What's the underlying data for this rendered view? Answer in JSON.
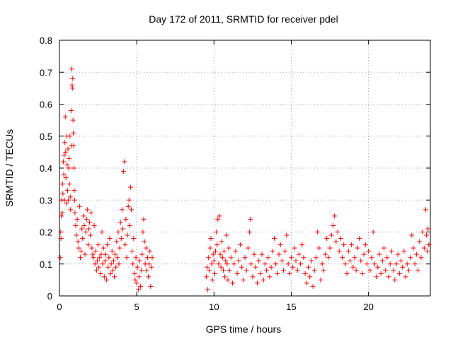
{
  "chart_data": {
    "type": "scatter",
    "title": "Day 172 of 2011, SRMTID for receiver pdel",
    "xlabel": "GPS time / hours",
    "ylabel": "SRMTID / TECUs",
    "xlim": [
      0,
      24
    ],
    "ylim": [
      0,
      0.8
    ],
    "xticks": [
      0,
      5,
      10,
      15,
      20
    ],
    "xtick_labels": [
      "0",
      "5",
      "10",
      "15",
      "20"
    ],
    "yticks": [
      0,
      0.1,
      0.2,
      0.3,
      0.4,
      0.5,
      0.6,
      0.7,
      0.8
    ],
    "ytick_labels": [
      "0",
      "0.1",
      "0.2",
      "0.3",
      "0.4",
      "0.5",
      "0.6",
      "0.7",
      "0.8"
    ],
    "grid": true,
    "marker": "+",
    "color": "#ff0000",
    "series": [
      {
        "name": "SRMTID",
        "points": [
          [
            0.05,
            0.12
          ],
          [
            0.08,
            0.2
          ],
          [
            0.1,
            0.18
          ],
          [
            0.12,
            0.25
          ],
          [
            0.15,
            0.3
          ],
          [
            0.18,
            0.26
          ],
          [
            0.2,
            0.35
          ],
          [
            0.22,
            0.32
          ],
          [
            0.25,
            0.42
          ],
          [
            0.28,
            0.38
          ],
          [
            0.3,
            0.44
          ],
          [
            0.32,
            0.3
          ],
          [
            0.35,
            0.48
          ],
          [
            0.38,
            0.56
          ],
          [
            0.4,
            0.45
          ],
          [
            0.42,
            0.37
          ],
          [
            0.45,
            0.29
          ],
          [
            0.48,
            0.5
          ],
          [
            0.5,
            0.41
          ],
          [
            0.52,
            0.33
          ],
          [
            0.55,
            0.46
          ],
          [
            0.58,
            0.3
          ],
          [
            0.6,
            0.4
          ],
          [
            0.62,
            0.43
          ],
          [
            0.65,
            0.35
          ],
          [
            0.68,
            0.5
          ],
          [
            0.7,
            0.31
          ],
          [
            0.72,
            0.27
          ],
          [
            0.75,
            0.58
          ],
          [
            0.78,
            0.47
          ],
          [
            0.8,
            0.71
          ],
          [
            0.82,
            0.66
          ],
          [
            0.84,
            0.65
          ],
          [
            0.86,
            0.68
          ],
          [
            0.88,
            0.55
          ],
          [
            0.9,
            0.51
          ],
          [
            0.92,
            0.47
          ],
          [
            0.94,
            0.4
          ],
          [
            0.96,
            0.33
          ],
          [
            0.98,
            0.3
          ],
          [
            1.0,
            0.26
          ],
          [
            1.05,
            0.22
          ],
          [
            1.1,
            0.19
          ],
          [
            1.15,
            0.24
          ],
          [
            1.2,
            0.17
          ],
          [
            1.25,
            0.15
          ],
          [
            1.3,
            0.28
          ],
          [
            1.35,
            0.12
          ],
          [
            1.4,
            0.14
          ],
          [
            1.45,
            0.21
          ],
          [
            1.5,
            0.18
          ],
          [
            1.55,
            0.25
          ],
          [
            1.6,
            0.22
          ],
          [
            1.65,
            0.13
          ],
          [
            1.7,
            0.2
          ],
          [
            1.75,
            0.24
          ],
          [
            1.8,
            0.27
          ],
          [
            1.85,
            0.16
          ],
          [
            1.9,
            0.21
          ],
          [
            1.95,
            0.23
          ],
          [
            2.0,
            0.19
          ],
          [
            2.05,
            0.26
          ],
          [
            2.1,
            0.15
          ],
          [
            2.15,
            0.13
          ],
          [
            2.2,
            0.12
          ],
          [
            2.25,
            0.22
          ],
          [
            2.3,
            0.1
          ],
          [
            2.35,
            0.14
          ],
          [
            2.4,
            0.08
          ],
          [
            2.45,
            0.11
          ],
          [
            2.5,
            0.16
          ],
          [
            2.55,
            0.09
          ],
          [
            2.6,
            0.12
          ],
          [
            2.65,
            0.07
          ],
          [
            2.7,
            0.13
          ],
          [
            2.75,
            0.2
          ],
          [
            2.8,
            0.1
          ],
          [
            2.85,
            0.15
          ],
          [
            2.9,
            0.06
          ],
          [
            2.95,
            0.11
          ],
          [
            3.0,
            0.13
          ],
          [
            3.05,
            0.05
          ],
          [
            3.1,
            0.16
          ],
          [
            3.15,
            0.09
          ],
          [
            3.2,
            0.12
          ],
          [
            3.25,
            0.18
          ],
          [
            3.3,
            0.07
          ],
          [
            3.35,
            0.1
          ],
          [
            3.4,
            0.14
          ],
          [
            3.45,
            0.08
          ],
          [
            3.5,
            0.11
          ],
          [
            3.55,
            0.06
          ],
          [
            3.6,
            0.13
          ],
          [
            3.65,
            0.09
          ],
          [
            3.7,
            0.17
          ],
          [
            3.75,
            0.12
          ],
          [
            3.8,
            0.2
          ],
          [
            3.85,
            0.1
          ],
          [
            3.9,
            0.15
          ],
          [
            3.95,
            0.23
          ],
          [
            4.0,
            0.18
          ],
          [
            4.05,
            0.27
          ],
          [
            4.1,
            0.21
          ],
          [
            4.15,
            0.39
          ],
          [
            4.2,
            0.42
          ],
          [
            4.25,
            0.16
          ],
          [
            4.3,
            0.24
          ],
          [
            4.35,
            0.12
          ],
          [
            4.4,
            0.19
          ],
          [
            4.45,
            0.28
          ],
          [
            4.5,
            0.3
          ],
          [
            4.55,
            0.22
          ],
          [
            4.6,
            0.34
          ],
          [
            4.65,
            0.27
          ],
          [
            4.7,
            0.14
          ],
          [
            4.75,
            0.1
          ],
          [
            4.8,
            0.18
          ],
          [
            4.85,
            0.07
          ],
          [
            4.9,
            0.05
          ],
          [
            4.95,
            0.12
          ],
          [
            5.0,
            0.04
          ],
          [
            5.05,
            0.09
          ],
          [
            5.1,
            0.02
          ],
          [
            5.15,
            0.06
          ],
          [
            5.2,
            0.11
          ],
          [
            5.25,
            0.03
          ],
          [
            5.3,
            0.08
          ],
          [
            5.35,
            0.13
          ],
          [
            5.4,
            0.2
          ],
          [
            5.45,
            0.24
          ],
          [
            5.5,
            0.17
          ],
          [
            5.55,
            0.1
          ],
          [
            5.6,
            0.15
          ],
          [
            5.65,
            0.08
          ],
          [
            5.7,
            0.12
          ],
          [
            5.75,
            0.06
          ],
          [
            5.8,
            0.1
          ],
          [
            5.85,
            0.14
          ],
          [
            5.9,
            0.03
          ],
          [
            5.95,
            0.09
          ],
          [
            6.0,
            0.12
          ],
          [
            9.5,
            0.06
          ],
          [
            9.55,
            0.09
          ],
          [
            9.6,
            0.02
          ],
          [
            9.65,
            0.12
          ],
          [
            9.7,
            0.08
          ],
          [
            9.75,
            0.15
          ],
          [
            9.8,
            0.18
          ],
          [
            9.85,
            0.1
          ],
          [
            9.9,
            0.05
          ],
          [
            9.95,
            0.13
          ],
          [
            10.0,
            0.11
          ],
          [
            10.05,
            0.07
          ],
          [
            10.1,
            0.14
          ],
          [
            10.15,
            0.2
          ],
          [
            10.2,
            0.16
          ],
          [
            10.25,
            0.24
          ],
          [
            10.3,
            0.1
          ],
          [
            10.35,
            0.25
          ],
          [
            10.4,
            0.13
          ],
          [
            10.45,
            0.09
          ],
          [
            10.5,
            0.17
          ],
          [
            10.55,
            0.12
          ],
          [
            10.6,
            0.08
          ],
          [
            10.65,
            0.14
          ],
          [
            10.7,
            0.06
          ],
          [
            10.75,
            0.11
          ],
          [
            10.8,
            0.19
          ],
          [
            10.85,
            0.1
          ],
          [
            10.9,
            0.05
          ],
          [
            10.95,
            0.15
          ],
          [
            11.0,
            0.08
          ],
          [
            11.1,
            0.12
          ],
          [
            11.2,
            0.04
          ],
          [
            11.3,
            0.1
          ],
          [
            11.4,
            0.14
          ],
          [
            11.5,
            0.07
          ],
          [
            11.6,
            0.11
          ],
          [
            11.7,
            0.16
          ],
          [
            11.8,
            0.09
          ],
          [
            11.9,
            0.05
          ],
          [
            12.0,
            0.12
          ],
          [
            12.1,
            0.08
          ],
          [
            12.2,
            0.15
          ],
          [
            12.3,
            0.2
          ],
          [
            12.35,
            0.24
          ],
          [
            12.4,
            0.1
          ],
          [
            12.5,
            0.06
          ],
          [
            12.6,
            0.13
          ],
          [
            12.7,
            0.09
          ],
          [
            12.8,
            0.04
          ],
          [
            12.9,
            0.11
          ],
          [
            13.0,
            0.07
          ],
          [
            13.1,
            0.13
          ],
          [
            13.2,
            0.05
          ],
          [
            13.3,
            0.1
          ],
          [
            13.4,
            0.08
          ],
          [
            13.5,
            0.12
          ],
          [
            13.6,
            0.06
          ],
          [
            13.7,
            0.09
          ],
          [
            13.8,
            0.14
          ],
          [
            13.9,
            0.18
          ],
          [
            14.0,
            0.1
          ],
          [
            14.1,
            0.07
          ],
          [
            14.2,
            0.13
          ],
          [
            14.3,
            0.16
          ],
          [
            14.4,
            0.11
          ],
          [
            14.5,
            0.08
          ],
          [
            14.6,
            0.14
          ],
          [
            14.7,
            0.19
          ],
          [
            14.8,
            0.1
          ],
          [
            14.9,
            0.07
          ],
          [
            15.0,
            0.12
          ],
          [
            15.1,
            0.09
          ],
          [
            15.2,
            0.15
          ],
          [
            15.3,
            0.11
          ],
          [
            15.4,
            0.08
          ],
          [
            15.5,
            0.13
          ],
          [
            15.6,
            0.1
          ],
          [
            15.7,
            0.16
          ],
          [
            15.8,
            0.12
          ],
          [
            15.9,
            0.07
          ],
          [
            16.0,
            0.04
          ],
          [
            16.1,
            0.09
          ],
          [
            16.2,
            0.06
          ],
          [
            16.3,
            0.11
          ],
          [
            16.4,
            0.03
          ],
          [
            16.5,
            0.08
          ],
          [
            16.6,
            0.12
          ],
          [
            16.7,
            0.2
          ],
          [
            16.8,
            0.15
          ],
          [
            16.9,
            0.05
          ],
          [
            17.0,
            0.1
          ],
          [
            17.1,
            0.08
          ],
          [
            17.2,
            0.13
          ],
          [
            17.3,
            0.18
          ],
          [
            17.4,
            0.12
          ],
          [
            17.5,
            0.15
          ],
          [
            17.6,
            0.19
          ],
          [
            17.7,
            0.22
          ],
          [
            17.8,
            0.25
          ],
          [
            17.9,
            0.17
          ],
          [
            18.0,
            0.2
          ],
          [
            18.1,
            0.14
          ],
          [
            18.2,
            0.18
          ],
          [
            18.3,
            0.12
          ],
          [
            18.4,
            0.16
          ],
          [
            18.5,
            0.1
          ],
          [
            18.6,
            0.07
          ],
          [
            18.7,
            0.14
          ],
          [
            18.8,
            0.11
          ],
          [
            18.9,
            0.16
          ],
          [
            19.0,
            0.09
          ],
          [
            19.1,
            0.12
          ],
          [
            19.2,
            0.08
          ],
          [
            19.3,
            0.15
          ],
          [
            19.4,
            0.18
          ],
          [
            19.5,
            0.11
          ],
          [
            19.6,
            0.07
          ],
          [
            19.7,
            0.13
          ],
          [
            19.8,
            0.16
          ],
          [
            19.9,
            0.1
          ],
          [
            20.0,
            0.14
          ],
          [
            20.1,
            0.08
          ],
          [
            20.2,
            0.12
          ],
          [
            20.3,
            0.2
          ],
          [
            20.4,
            0.1
          ],
          [
            20.5,
            0.06
          ],
          [
            20.6,
            0.09
          ],
          [
            20.7,
            0.13
          ],
          [
            20.8,
            0.07
          ],
          [
            20.9,
            0.11
          ],
          [
            21.0,
            0.15
          ],
          [
            21.1,
            0.08
          ],
          [
            21.2,
            0.12
          ],
          [
            21.3,
            0.06
          ],
          [
            21.4,
            0.1
          ],
          [
            21.5,
            0.14
          ],
          [
            21.6,
            0.08
          ],
          [
            21.7,
            0.05
          ],
          [
            21.8,
            0.1
          ],
          [
            21.9,
            0.13
          ],
          [
            22.0,
            0.07
          ],
          [
            22.1,
            0.11
          ],
          [
            22.2,
            0.09
          ],
          [
            22.3,
            0.14
          ],
          [
            22.4,
            0.06
          ],
          [
            22.5,
            0.1
          ],
          [
            22.6,
            0.08
          ],
          [
            22.7,
            0.12
          ],
          [
            22.8,
            0.19
          ],
          [
            22.9,
            0.15
          ],
          [
            23.0,
            0.1
          ],
          [
            23.1,
            0.13
          ],
          [
            23.2,
            0.08
          ],
          [
            23.3,
            0.17
          ],
          [
            23.4,
            0.12
          ],
          [
            23.5,
            0.2
          ],
          [
            23.6,
            0.15
          ],
          [
            23.7,
            0.27
          ],
          [
            23.75,
            0.19
          ],
          [
            23.8,
            0.14
          ],
          [
            23.85,
            0.21
          ],
          [
            23.9,
            0.16
          ]
        ]
      }
    ]
  }
}
